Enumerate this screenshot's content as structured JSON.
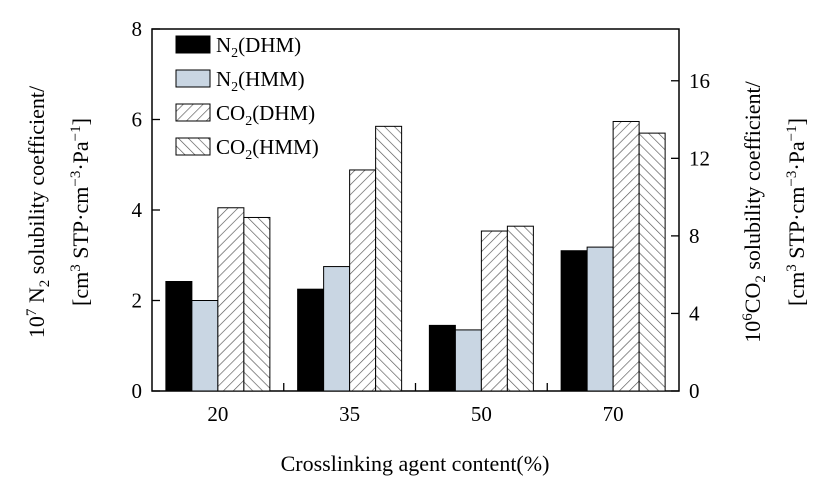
{
  "chart_data": {
    "type": "bar",
    "xlabel": "Crosslinking agent content(%)",
    "categories": [
      "20",
      "35",
      "50",
      "70"
    ],
    "y_left": {
      "label_line1_prefix": "10",
      "label_line1_sup": "7",
      "label_line1_mid": " N",
      "label_line1_sub": "2",
      "label_line1_suffix": " solubility coefficient/",
      "label_line2_a": "[cm",
      "label_line2_sup1": "3",
      "label_line2_b": " STP·cm",
      "label_line2_sup2": "−3",
      "label_line2_c": "·Pa",
      "label_line2_sup3": "−1",
      "label_line2_d": "]",
      "ylim": [
        0,
        8
      ],
      "ticks": [
        "0",
        "2",
        "4",
        "6",
        "8"
      ]
    },
    "y_right": {
      "label_line1_prefix": "10",
      "label_line1_sup": "6",
      "label_line1_mid": "CO",
      "label_line1_sub": "2",
      "label_line1_suffix": " solubility coefficient/",
      "label_line2_a": "[cm",
      "label_line2_sup1": "3",
      "label_line2_b": " STP·cm",
      "label_line2_sup2": "−3",
      "label_line2_c": "·Pa",
      "label_line2_sup3": "−1",
      "label_line2_d": "]",
      "ylim": [
        0,
        18.67
      ],
      "ticks": [
        "0",
        "4",
        "8",
        "12",
        "16"
      ]
    },
    "series": [
      {
        "name": "N2(DHM)",
        "legend_main": "N",
        "legend_sub": "2",
        "legend_rest": "(DHM)",
        "axis": "left",
        "fill": "solid-black",
        "values": [
          2.42,
          2.25,
          1.45,
          3.1
        ]
      },
      {
        "name": "N2(HMM)",
        "legend_main": "N",
        "legend_sub": "2",
        "legend_rest": "(HMM)",
        "axis": "left",
        "fill": "light-blue",
        "values": [
          2.0,
          2.75,
          1.35,
          3.18
        ]
      },
      {
        "name": "CO2(DHM)",
        "legend_main": "CO",
        "legend_sub": "2",
        "legend_rest": "(DHM)",
        "axis": "right",
        "fill": "hatch-forward",
        "values": [
          9.45,
          11.4,
          8.25,
          13.9
        ]
      },
      {
        "name": "CO2(HMM)",
        "legend_main": "CO",
        "legend_sub": "2",
        "legend_rest": "(HMM)",
        "axis": "right",
        "fill": "hatch-back",
        "values": [
          8.95,
          13.65,
          8.5,
          13.3
        ]
      }
    ],
    "legend_position": "top-left",
    "grid": false,
    "colors": {
      "black": "#000000",
      "light_blue": "#c9d6e3",
      "hatch_line": "#555555"
    }
  }
}
